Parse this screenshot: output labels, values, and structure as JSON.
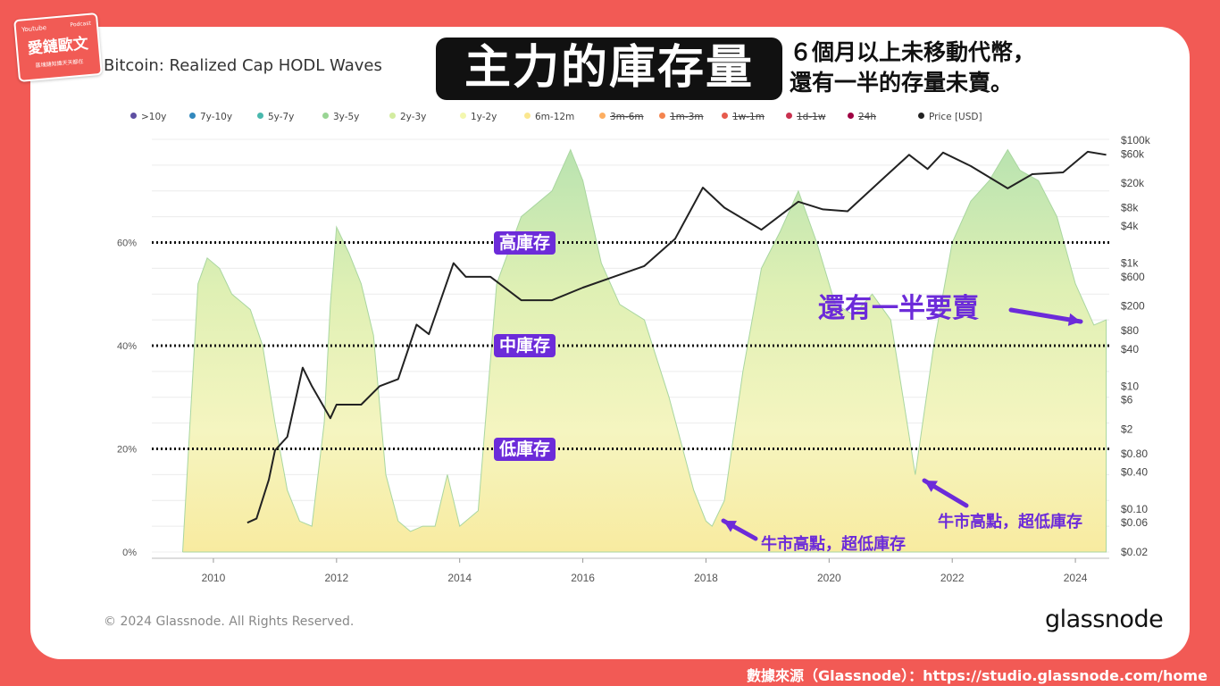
{
  "logo": {
    "line1": "Youtube",
    "line2": "Podcast",
    "name": "愛鏈歐文",
    "tagline": "區塊鏈知識天天都在"
  },
  "banner": {
    "title": "主力的庫存量"
  },
  "subtitle": {
    "line1": "６個月以上未移動代幣，",
    "line2": "還有一半的存量未賣。"
  },
  "chart_data": {
    "type": "area",
    "title": "Bitcoin: Realized Cap HODL Waves",
    "legend": [
      {
        "label": ">10y",
        "color": "#5e4fa2",
        "enabled": true
      },
      {
        "label": "7y-10y",
        "color": "#3288bd",
        "enabled": true
      },
      {
        "label": "5y-7y",
        "color": "#49b8ad",
        "enabled": true
      },
      {
        "label": "3y-5y",
        "color": "#99d594",
        "enabled": true
      },
      {
        "label": "2y-3y",
        "color": "#d3eca0",
        "enabled": true
      },
      {
        "label": "1y-2y",
        "color": "#f3f7ae",
        "enabled": true
      },
      {
        "label": "6m-12m",
        "color": "#fbe78f",
        "enabled": true
      },
      {
        "label": "3m-6m",
        "color": "#fdae61",
        "enabled": false
      },
      {
        "label": "1m-3m",
        "color": "#f4844e",
        "enabled": false
      },
      {
        "label": "1w-1m",
        "color": "#e65b4d",
        "enabled": false
      },
      {
        "label": "1d-1w",
        "color": "#c9314f",
        "enabled": false
      },
      {
        "label": "24h",
        "color": "#9e0142",
        "enabled": false
      },
      {
        "label": "Price [USD]",
        "color": "#222222",
        "enabled": true
      }
    ],
    "x_ticks": [
      "2010",
      "2012",
      "2014",
      "2016",
      "2018",
      "2020",
      "2022",
      "2024"
    ],
    "y_left_ticks": [
      "0%",
      "20%",
      "40%",
      "60%"
    ],
    "y_right_ticks": [
      "$100k",
      "$60k",
      "$20k",
      "$8k",
      "$4k",
      "$1k",
      "$600",
      "$200",
      "$80",
      "$40",
      "$10",
      "$6",
      "$2",
      "$0.80",
      "$0.40",
      "$0.10",
      "$0.06",
      "$0.02"
    ],
    "ylim": [
      0,
      80
    ],
    "price_scale": "log",
    "grid": true,
    "hodl_6m_plus": {
      "x": [
        2009.5,
        2009.75,
        2009.9,
        2010.1,
        2010.3,
        2010.5,
        2010.6,
        2010.8,
        2011.0,
        2011.2,
        2011.4,
        2011.6,
        2011.8,
        2011.9,
        2012.0,
        2012.2,
        2012.4,
        2012.6,
        2012.8,
        2013.0,
        2013.2,
        2013.4,
        2013.6,
        2013.8,
        2014.0,
        2014.3,
        2014.6,
        2015.0,
        2015.5,
        2015.8,
        2016.0,
        2016.3,
        2016.6,
        2017.0,
        2017.4,
        2017.8,
        2018.0,
        2018.1,
        2018.3,
        2018.6,
        2018.9,
        2019.2,
        2019.5,
        2019.8,
        2020.1,
        2020.4,
        2020.7,
        2021.0,
        2021.2,
        2021.4,
        2021.7,
        2022.0,
        2022.3,
        2022.6,
        2022.9,
        2023.1,
        2023.4,
        2023.7,
        2024.0,
        2024.3,
        2024.5
      ],
      "y": [
        0,
        52,
        57,
        55,
        50,
        48,
        47,
        40,
        25,
        12,
        6,
        5,
        25,
        48,
        63,
        58,
        52,
        42,
        15,
        6,
        4,
        5,
        5,
        15,
        5,
        8,
        52,
        65,
        70,
        78,
        72,
        56,
        48,
        45,
        30,
        12,
        6,
        5,
        10,
        35,
        55,
        62,
        70,
        60,
        48,
        46,
        50,
        45,
        30,
        15,
        40,
        60,
        68,
        72,
        78,
        74,
        72,
        65,
        52,
        44,
        45
      ]
    },
    "price": {
      "x": [
        2010.55,
        2010.7,
        2010.9,
        2011.0,
        2011.2,
        2011.45,
        2011.6,
        2011.9,
        2012.0,
        2012.4,
        2012.7,
        2013.0,
        2013.3,
        2013.5,
        2013.9,
        2014.1,
        2014.5,
        2015.0,
        2015.5,
        2016.0,
        2016.5,
        2017.0,
        2017.5,
        2017.95,
        2018.3,
        2018.9,
        2019.5,
        2019.9,
        2020.3,
        2020.9,
        2021.3,
        2021.6,
        2021.85,
        2022.3,
        2022.9,
        2023.3,
        2023.8,
        2024.2,
        2024.5
      ],
      "y": [
        0.06,
        0.07,
        0.3,
        0.9,
        1.5,
        20,
        10,
        3,
        5,
        5,
        10,
        13,
        100,
        70,
        1000,
        600,
        600,
        250,
        250,
        400,
        600,
        900,
        2500,
        17000,
        8000,
        3500,
        10000,
        7500,
        7000,
        25000,
        58000,
        34000,
        63000,
        38000,
        16500,
        28000,
        30000,
        65000,
        58000
      ]
    },
    "annotations": [
      {
        "text": "還有一半要賣"
      },
      {
        "text": "牛市高點，超低庫存"
      },
      {
        "text": "牛市高點，超低庫存"
      }
    ],
    "levels": [
      {
        "label": "高庫存",
        "value": 60
      },
      {
        "label": "中庫存",
        "value": 40
      },
      {
        "label": "低庫存",
        "value": 20
      }
    ]
  },
  "footer": {
    "copyright": "© 2024 Glassnode. All Rights Reserved.",
    "brand": "glassnode",
    "source": "數據來源（Glassnode）：https://studio.glassnode.com/home"
  }
}
